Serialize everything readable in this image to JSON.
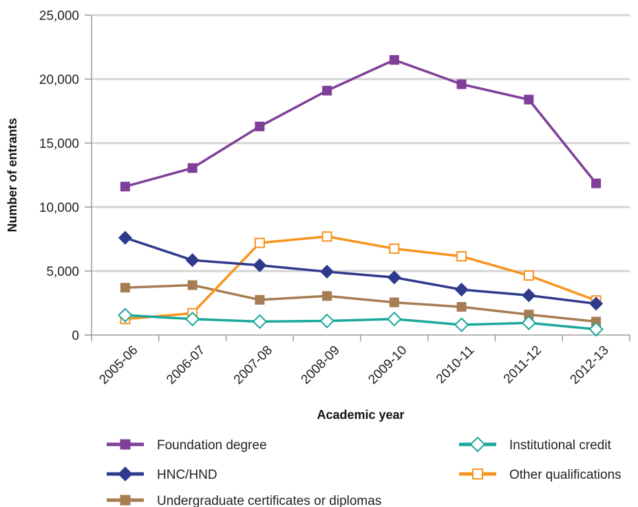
{
  "chart_data": {
    "type": "line",
    "title": "",
    "xlabel": "Academic year",
    "ylabel": "Number of entrants",
    "categories": [
      "2005-06",
      "2006-07",
      "2007-08",
      "2008-09",
      "2009-10",
      "2010-11",
      "2011-12",
      "2012-13"
    ],
    "ylim": [
      0,
      25000
    ],
    "yticks": [
      0,
      5000,
      10000,
      15000,
      20000,
      25000
    ],
    "ytick_labels": [
      "0",
      "5,000",
      "10,000",
      "15,000",
      "20,000",
      "25,000"
    ],
    "grid": "horizontal",
    "legend_position": "bottom",
    "series": [
      {
        "name": "Foundation degree",
        "color": "#7f3f98",
        "marker": "square-filled",
        "values": [
          11600,
          13050,
          16300,
          19100,
          21500,
          19600,
          18400,
          11850
        ]
      },
      {
        "name": "HNC/HND",
        "color": "#2e3a8c",
        "marker": "diamond-filled",
        "values": [
          7600,
          5850,
          5450,
          4950,
          4500,
          3550,
          3100,
          2450
        ]
      },
      {
        "name": "Undergraduate certificates or diplomas",
        "color": "#a67c52",
        "marker": "square-filled",
        "values": [
          3700,
          3900,
          2750,
          3050,
          2550,
          2200,
          1600,
          1050
        ]
      },
      {
        "name": "Institutional credit",
        "color": "#1aa89a",
        "marker": "diamond-open",
        "values": [
          1550,
          1250,
          1050,
          1100,
          1250,
          800,
          950,
          450
        ]
      },
      {
        "name": "Other qualifications",
        "color": "#f7941d",
        "marker": "square-open",
        "values": [
          1250,
          1700,
          7200,
          7700,
          6750,
          6150,
          4650,
          2700
        ]
      }
    ]
  }
}
